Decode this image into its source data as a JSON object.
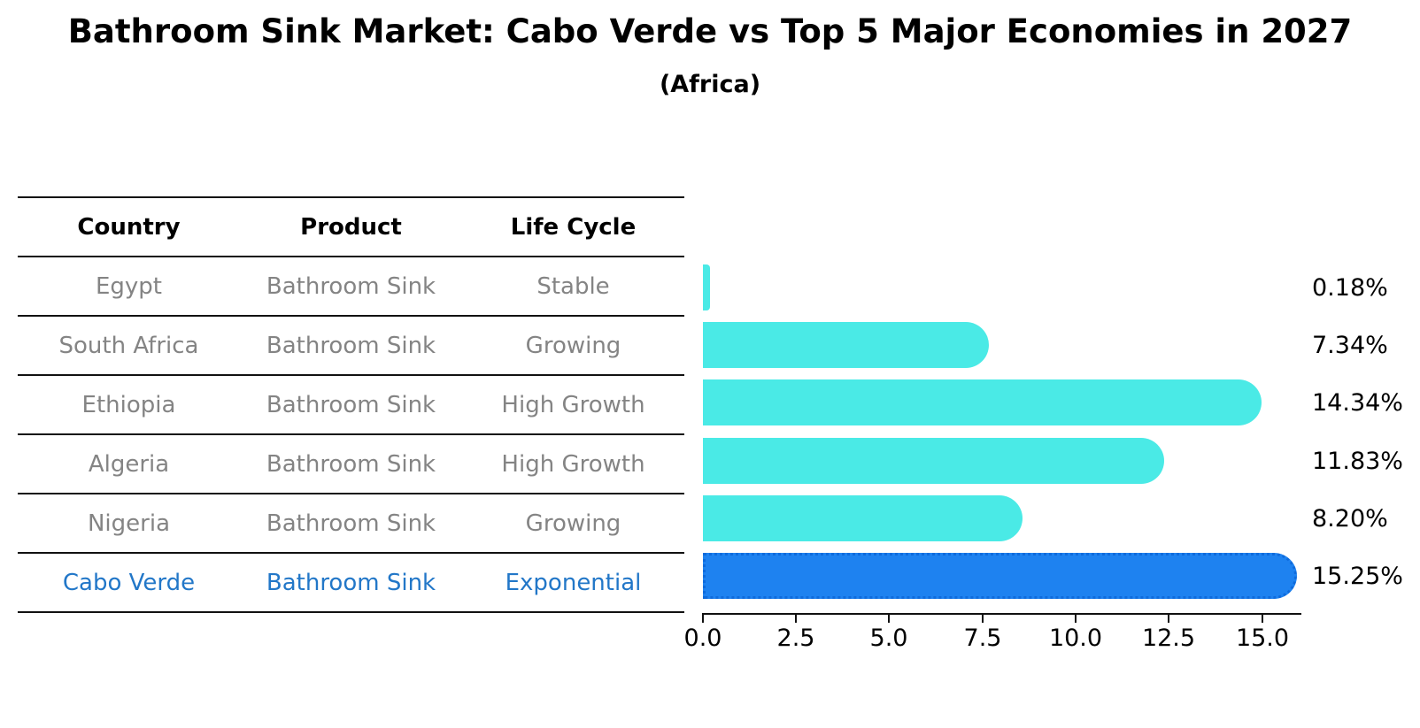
{
  "title": "Bathroom Sink Market: Cabo Verde vs Top 5 Major Economies in 2027",
  "subtitle": "(Africa)",
  "table": {
    "headers": [
      "Country",
      "Product",
      "Life Cycle"
    ],
    "rows": [
      {
        "country": "Egypt",
        "product": "Bathroom Sink",
        "life_cycle": "Stable",
        "highlight": false
      },
      {
        "country": "South Africa",
        "product": "Bathroom Sink",
        "life_cycle": "Growing",
        "highlight": false
      },
      {
        "country": "Ethiopia",
        "product": "Bathroom Sink",
        "life_cycle": "High Growth",
        "highlight": false
      },
      {
        "country": "Algeria",
        "product": "Bathroom Sink",
        "life_cycle": "High Growth",
        "highlight": false
      },
      {
        "country": "Nigeria",
        "product": "Bathroom Sink",
        "life_cycle": "Growing",
        "highlight": false
      },
      {
        "country": "Cabo Verde",
        "product": "Bathroom Sink",
        "life_cycle": "Exponential",
        "highlight": true
      }
    ]
  },
  "chart_data": {
    "type": "bar",
    "orientation": "horizontal",
    "title": "Bathroom Sink Market: Cabo Verde vs Top 5 Major Economies in 2027",
    "subtitle": "(Africa)",
    "categories": [
      "Egypt",
      "South Africa",
      "Ethiopia",
      "Algeria",
      "Nigeria",
      "Cabo Verde"
    ],
    "values": [
      0.18,
      7.34,
      14.34,
      11.83,
      8.2,
      15.25
    ],
    "value_labels": [
      "0.18%",
      "7.34%",
      "14.34%",
      "11.83%",
      "8.20%",
      "15.25%"
    ],
    "x_tick_labels": [
      "0.0",
      "2.5",
      "5.0",
      "7.5",
      "10.0",
      "12.5",
      "15.0"
    ],
    "xlim": [
      0,
      16
    ],
    "grid": false,
    "legend": false,
    "highlight_index": 5,
    "bar_color": "#4AEAE6",
    "highlight_color": "#1E82F0",
    "highlight_border_color": "#0F6BDC",
    "highlight_text_color": "#2277C8"
  },
  "colors": {
    "background": "#FFFFFF",
    "table_text": "#848484",
    "header_text": "#000000",
    "line": "#111111"
  }
}
